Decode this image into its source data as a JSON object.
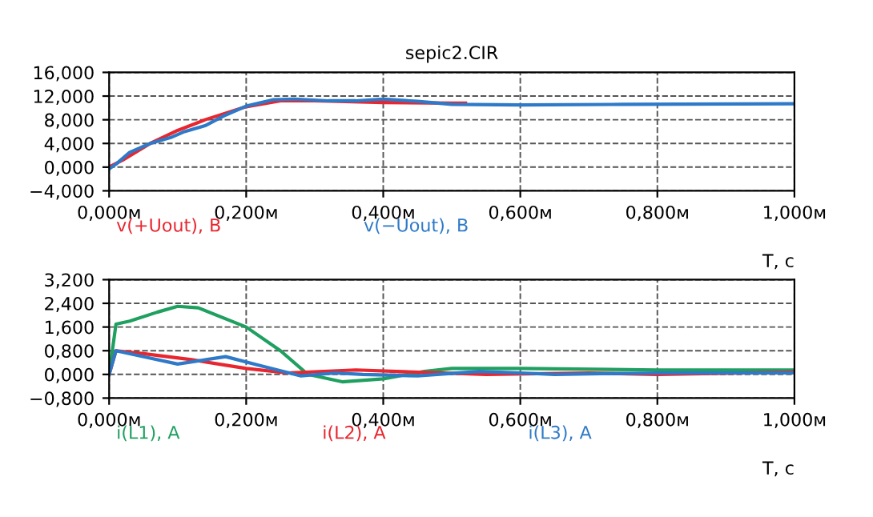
{
  "chart_data": [
    {
      "type": "line",
      "title": "sepic2.CIR",
      "xlabel": "T, c",
      "grid": true,
      "legend": "bottom",
      "line_style": "solid",
      "xlim": [
        0,
        1.0
      ],
      "xticks": [
        {
          "value": 0,
          "label": "0,000м"
        },
        {
          "value": 0.2,
          "label": "0,200м"
        },
        {
          "value": 0.4,
          "label": "0,400м"
        },
        {
          "value": 0.6,
          "label": "0,600м"
        },
        {
          "value": 0.8,
          "label": "0,800м"
        },
        {
          "value": 1.0,
          "label": "1,000м"
        }
      ],
      "ylim": [
        -4,
        16
      ],
      "yticks": [
        {
          "value": -4,
          "label": "−4,000"
        },
        {
          "value": 0,
          "label": "0,000"
        },
        {
          "value": 4,
          "label": "4,000"
        },
        {
          "value": 8,
          "label": "8,000"
        },
        {
          "value": 12,
          "label": "12,000"
        },
        {
          "value": 16,
          "label": "16,000"
        }
      ],
      "series": [
        {
          "name": "v(+Uout), B",
          "color": "#e8262f",
          "x": [
            0,
            0.02,
            0.06,
            0.1,
            0.14,
            0.2,
            0.25,
            0.3,
            0.4,
            0.5,
            0.52
          ],
          "values": [
            0,
            1.2,
            4,
            6.2,
            8,
            10.2,
            11.2,
            11.2,
            10.9,
            10.8,
            10.8
          ]
        },
        {
          "name": "v(−Uout), B",
          "color": "#2f7ac8",
          "x": [
            0,
            0.01,
            0.03,
            0.06,
            0.09,
            0.11,
            0.14,
            0.17,
            0.2,
            0.24,
            0.27,
            0.32,
            0.36,
            0.4,
            0.45,
            0.5,
            0.6,
            0.75,
            1.0
          ],
          "values": [
            -0.3,
            0.5,
            2.5,
            4,
            5,
            6,
            7,
            8.8,
            10.3,
            11.4,
            11.5,
            11.2,
            11.2,
            11.5,
            11.1,
            10.6,
            10.5,
            10.6,
            10.7
          ]
        }
      ]
    },
    {
      "type": "line",
      "xlabel": "T, c",
      "grid": true,
      "legend": "bottom",
      "line_style": "solid",
      "xlim": [
        0,
        1.0
      ],
      "xticks": [
        {
          "value": 0,
          "label": "0,000м"
        },
        {
          "value": 0.2,
          "label": "0,200м"
        },
        {
          "value": 0.4,
          "label": "0,400м"
        },
        {
          "value": 0.6,
          "label": "0,600м"
        },
        {
          "value": 0.8,
          "label": "0,800м"
        },
        {
          "value": 1.0,
          "label": "1,000м"
        }
      ],
      "ylim": [
        -0.8,
        3.2
      ],
      "yticks": [
        {
          "value": -0.8,
          "label": "−0,800"
        },
        {
          "value": 0,
          "label": "0,000"
        },
        {
          "value": 0.8,
          "label": "0,800"
        },
        {
          "value": 1.6,
          "label": "1,600"
        },
        {
          "value": 2.4,
          "label": "2,400"
        },
        {
          "value": 3.2,
          "label": "3,200"
        }
      ],
      "series": [
        {
          "name": "i(L1), A",
          "color": "#1fa060",
          "x": [
            0,
            0.01,
            0.03,
            0.07,
            0.1,
            0.13,
            0.2,
            0.25,
            0.29,
            0.34,
            0.4,
            0.46,
            0.5,
            0.6,
            0.8,
            1.0
          ],
          "values": [
            0,
            1.7,
            1.8,
            2.1,
            2.3,
            2.25,
            1.6,
            0.8,
            0,
            -0.25,
            -0.15,
            0.1,
            0.2,
            0.2,
            0.15,
            0.15
          ]
        },
        {
          "name": "i(L2), A",
          "color": "#e8262f",
          "x": [
            0,
            0.01,
            0.05,
            0.12,
            0.2,
            0.26,
            0.36,
            0.42,
            0.55,
            0.7,
            0.8,
            1.0
          ],
          "values": [
            0,
            0.8,
            0.7,
            0.5,
            0.2,
            0.05,
            0.15,
            0.1,
            0,
            0.05,
            0,
            0.08
          ]
        },
        {
          "name": "i(L3), A",
          "color": "#2f7ac8",
          "x": [
            0,
            0.01,
            0.06,
            0.1,
            0.17,
            0.22,
            0.28,
            0.33,
            0.37,
            0.45,
            0.54,
            0.6,
            0.65,
            0.8,
            1.0
          ],
          "values": [
            0,
            0.8,
            0.55,
            0.35,
            0.6,
            0.3,
            -0.05,
            0.05,
            0,
            -0.05,
            0.1,
            0.05,
            0,
            0.05,
            0.05
          ]
        }
      ]
    }
  ]
}
